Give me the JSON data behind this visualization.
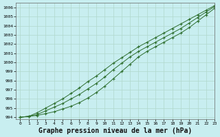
{
  "title": "",
  "xlabel": "Graphe pression niveau de la mer (hPa)",
  "xlabel_fontsize": 7,
  "background_color": "#c8eef0",
  "grid_color": "#b0d8cc",
  "line_color": "#2d6e2d",
  "marker": "+",
  "xlim": [
    -0.5,
    23
  ],
  "ylim": [
    993.8,
    1006.5
  ],
  "yticks": [
    994,
    995,
    996,
    997,
    998,
    999,
    1000,
    1001,
    1002,
    1003,
    1004,
    1005,
    1006
  ],
  "xticks": [
    0,
    1,
    2,
    3,
    4,
    5,
    6,
    7,
    8,
    9,
    10,
    11,
    12,
    13,
    14,
    15,
    16,
    17,
    18,
    19,
    20,
    21,
    22,
    23
  ],
  "series": [
    [
      994.0,
      994.1,
      994.2,
      994.4,
      994.6,
      994.9,
      995.2,
      995.6,
      996.1,
      996.7,
      997.4,
      998.2,
      999.0,
      999.8,
      1000.6,
      1001.2,
      1001.7,
      1002.2,
      1002.7,
      1003.2,
      1003.8,
      1004.5,
      1005.2,
      1005.9
    ],
    [
      994.0,
      994.1,
      994.3,
      994.7,
      995.1,
      995.5,
      996.0,
      996.5,
      997.1,
      997.7,
      998.4,
      999.2,
      999.9,
      1000.6,
      1001.2,
      1001.7,
      1002.2,
      1002.7,
      1003.2,
      1003.7,
      1004.3,
      1004.9,
      1005.5,
      1006.1
    ],
    [
      994.0,
      994.1,
      994.5,
      995.0,
      995.5,
      996.0,
      996.6,
      997.2,
      997.9,
      998.5,
      999.2,
      999.9,
      1000.5,
      1001.1,
      1001.7,
      1002.2,
      1002.7,
      1003.2,
      1003.7,
      1004.2,
      1004.7,
      1005.2,
      1005.7,
      1006.2
    ]
  ]
}
